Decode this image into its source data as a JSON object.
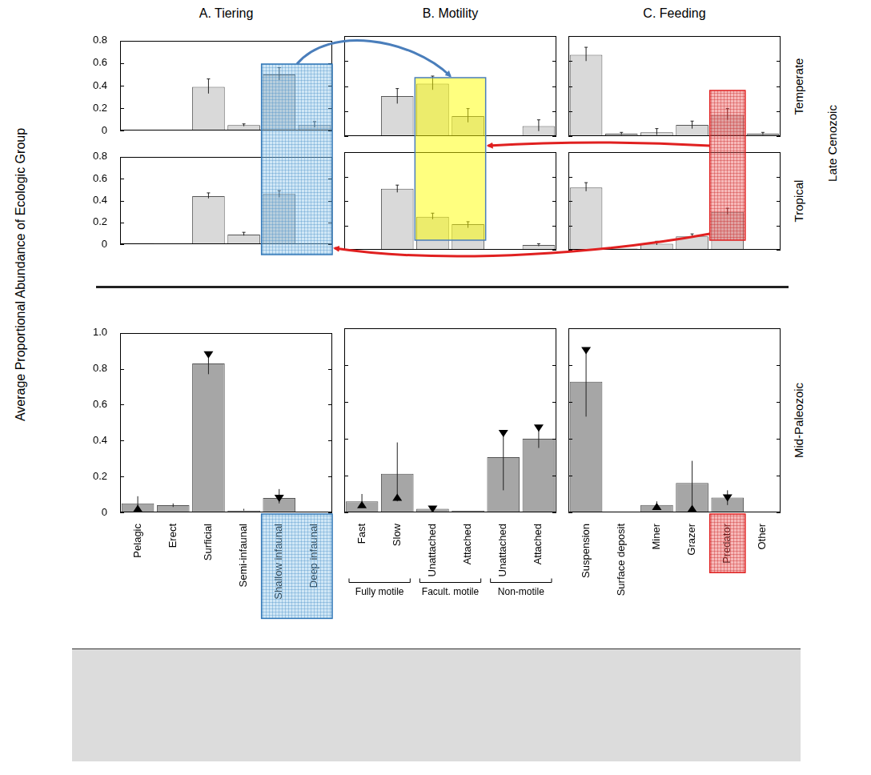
{
  "y_label": "Average Proportional Abundance of Ecologic Group",
  "row_labels": [
    "Temperate",
    "Tropical"
  ],
  "era_labels": [
    "Late Cenozoic",
    "Mid-Paleozoic"
  ],
  "chart_data": [
    {
      "type": "bar",
      "title": "A. Tiering",
      "categories": [
        "Pelagic",
        "Erect",
        "Surficial",
        "Semi-infaunal",
        "Shallow infaunal",
        "Deep infaunal"
      ],
      "values": [
        0,
        0,
        0.39,
        0.05,
        0.5,
        0.05
      ],
      "error_bars": [
        null,
        null,
        [
          0.33,
          0.46
        ],
        [
          0.04,
          0.06
        ],
        [
          0.45,
          0.56
        ],
        [
          0.03,
          0.08
        ]
      ],
      "color": "#d9d9d9",
      "ylim": [
        0,
        0.8
      ],
      "yticks": [
        0,
        0.2,
        0.4,
        0.6,
        0.8
      ],
      "tick_labels": "y"
    },
    {
      "type": "bar",
      "title": "B. Motility",
      "categories": [
        "Fast",
        "Slow",
        "Unattached",
        "Attached",
        "Unattached",
        "Attached"
      ],
      "values": [
        0,
        0.32,
        0.42,
        0.16,
        0,
        0.08
      ],
      "error_bars": [
        null,
        [
          0.26,
          0.38
        ],
        [
          0.37,
          0.48
        ],
        [
          0.11,
          0.22
        ],
        null,
        [
          0.04,
          0.13
        ]
      ],
      "color": "#d9d9d9",
      "ylim": [
        0,
        0.8
      ],
      "yticks": [
        0,
        0.2,
        0.4,
        0.6,
        0.8
      ],
      "tick_labels": false
    },
    {
      "type": "bar",
      "title": "C. Feeding",
      "categories": [
        "Suspension",
        "Surface deposit",
        "Miner",
        "Grazer",
        "Predator",
        "Other"
      ],
      "values": [
        0.65,
        0.02,
        0.03,
        0.09,
        0.17,
        0.02
      ],
      "error_bars": [
        [
          0.6,
          0.71
        ],
        [
          0.01,
          0.03
        ],
        [
          0.01,
          0.06
        ],
        [
          0.06,
          0.12
        ],
        [
          0.13,
          0.22
        ],
        [
          0.01,
          0.03
        ]
      ],
      "color": "#d9d9d9",
      "ylim": [
        0,
        0.8
      ],
      "yticks": [
        0,
        0.2,
        0.4,
        0.6,
        0.8
      ],
      "tick_labels": false
    },
    {
      "type": "bar",
      "categories": [
        "Pelagic",
        "Erect",
        "Surficial",
        "Semi-infaunal",
        "Shallow infaunal",
        "Deep infaunal"
      ],
      "values": [
        0.01,
        0,
        0.44,
        0.09,
        0.46,
        0.01
      ],
      "error_bars": [
        null,
        null,
        [
          0.42,
          0.47
        ],
        [
          0.08,
          0.11
        ],
        [
          0.43,
          0.49
        ],
        null
      ],
      "color": "#d9d9d9",
      "ylim": [
        0,
        0.8
      ],
      "yticks": [
        0,
        0.2,
        0.4,
        0.6,
        0.8
      ],
      "tick_labels": "y"
    },
    {
      "type": "bar",
      "categories": [
        "Fast",
        "Slow",
        "Unattached",
        "Attached",
        "Unattached",
        "Attached"
      ],
      "values": [
        0,
        0.5,
        0.27,
        0.21,
        0,
        0.04
      ],
      "error_bars": [
        null,
        [
          0.47,
          0.53
        ],
        [
          0.25,
          0.3
        ],
        [
          0.18,
          0.23
        ],
        null,
        [
          0.03,
          0.05
        ]
      ],
      "color": "#d9d9d9",
      "ylim": [
        0,
        0.8
      ],
      "yticks": [
        0,
        0.2,
        0.4,
        0.6,
        0.8
      ],
      "tick_labels": false
    },
    {
      "type": "bar",
      "categories": [
        "Suspension",
        "Surface deposit",
        "Miner",
        "Grazer",
        "Predator",
        "Other"
      ],
      "values": [
        0.51,
        0.01,
        0.05,
        0.11,
        0.31,
        0
      ],
      "error_bars": [
        [
          0.48,
          0.55
        ],
        null,
        [
          0.04,
          0.07
        ],
        [
          0.1,
          0.13
        ],
        [
          0.29,
          0.34
        ],
        null
      ],
      "color": "#d9d9d9",
      "ylim": [
        0,
        0.8
      ],
      "yticks": [
        0,
        0.2,
        0.4,
        0.6,
        0.8
      ],
      "tick_labels": false
    },
    {
      "type": "bar",
      "categories": [
        "Pelagic",
        "Erect",
        "Surficial",
        "Semi-infaunal",
        "Shallow infaunal",
        "Deep infaunal"
      ],
      "values": [
        0.05,
        0.04,
        0.83,
        0.01,
        0.08,
        0
      ],
      "error_bars": [
        [
          0.02,
          0.09
        ],
        [
          0.03,
          0.05
        ],
        [
          0.77,
          0.89
        ],
        [
          0.01,
          0.02
        ],
        [
          0.05,
          0.13
        ],
        null
      ],
      "medians": [
        0.02,
        null,
        0.88,
        null,
        0.08,
        null
      ],
      "marker": "triangle",
      "color": "#a6a6a6",
      "ylim": [
        0,
        1
      ],
      "yticks": [
        0,
        0.2,
        0.4,
        0.6,
        0.8,
        {
          "value": 1,
          "label": "1.0"
        }
      ],
      "tick_labels": true
    },
    {
      "type": "bar",
      "categories": [
        "Fast",
        "Slow",
        "Unattached",
        "Attached",
        "Unattached",
        "Attached"
      ],
      "category_groups": [
        "Fully motile",
        "Fully motile",
        "Facult. motile",
        "Facult. motile",
        "Non-motile",
        "Non-motile"
      ],
      "values": [
        0.06,
        0.21,
        0.02,
        0.01,
        0.3,
        0.4
      ],
      "error_bars": [
        [
          0.04,
          0.1
        ],
        [
          0.06,
          0.38
        ],
        [
          0.01,
          0.03
        ],
        null,
        [
          0.12,
          0.44
        ],
        [
          0.35,
          0.47
        ]
      ],
      "medians": [
        0.04,
        0.08,
        0.02,
        null,
        0.43,
        0.46
      ],
      "marker": "triangle",
      "color": "#a6a6a6",
      "ylim": [
        0,
        1
      ],
      "yticks": [
        0,
        0.2,
        0.4,
        0.6,
        0.8,
        {
          "value": 1,
          "label": "1.0"
        }
      ],
      "tick_labels": "x"
    },
    {
      "type": "bar",
      "categories": [
        "Suspension",
        "Surface deposit",
        "Miner",
        "Grazer",
        "Predator",
        "Other"
      ],
      "values": [
        0.71,
        0,
        0.04,
        0.16,
        0.08,
        0
      ],
      "error_bars": [
        [
          0.52,
          0.89
        ],
        null,
        [
          0.02,
          0.06
        ],
        [
          0.02,
          0.28
        ],
        [
          0.04,
          0.12
        ],
        null
      ],
      "medians": [
        0.88,
        null,
        0.03,
        0.02,
        0.08,
        null
      ],
      "marker": "triangle",
      "color": "#a6a6a6",
      "ylim": [
        0,
        1
      ],
      "yticks": [
        0,
        0.2,
        0.4,
        0.6,
        0.8,
        {
          "value": 1,
          "label": "1.0"
        }
      ],
      "tick_labels": "x"
    }
  ]
}
